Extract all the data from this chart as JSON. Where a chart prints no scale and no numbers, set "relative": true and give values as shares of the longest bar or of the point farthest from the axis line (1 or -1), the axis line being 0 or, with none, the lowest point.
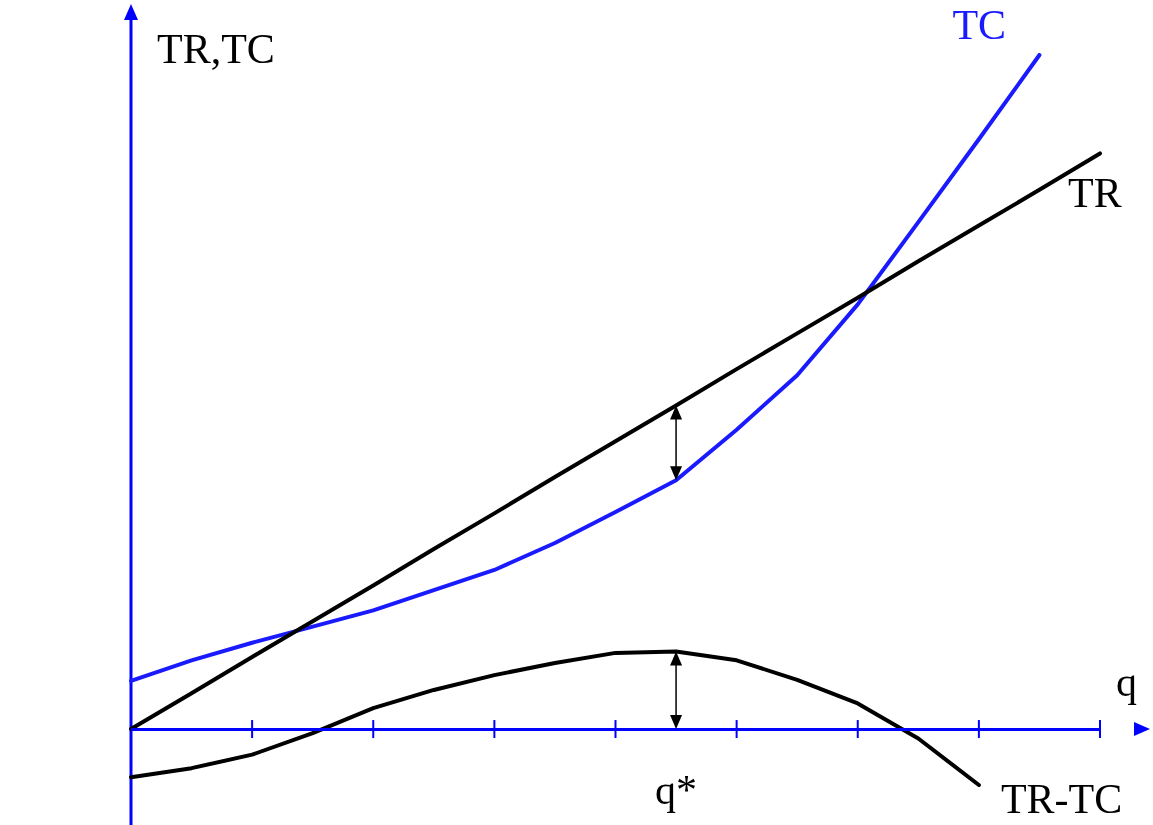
{
  "chart_data": {
    "type": "line",
    "relative": true,
    "xlabel": "q",
    "ylabel": "TR,TC",
    "categories": [
      null,
      null,
      null,
      null,
      null,
      null,
      null,
      null,
      null,
      null,
      null,
      null,
      null,
      null,
      null,
      null,
      null
    ],
    "series": [
      {
        "name": "TC",
        "color": "#1a1aff",
        "values": [
          0.0715,
          0.102,
          0.128,
          0.152,
          0.176,
          0.206,
          0.236,
          0.276,
          0.322,
          0.369,
          0.444,
          0.525,
          0.63,
          0.752,
          0.875,
          1,
          null
        ]
      },
      {
        "name": "TR",
        "color": "#000000",
        "values": [
          0,
          0.053,
          0.107,
          0.16,
          0.213,
          0.267,
          0.32,
          0.374,
          0.427,
          0.48,
          0.534,
          0.587,
          0.64,
          0.694,
          0.747,
          0.8,
          0.854
        ]
      },
      {
        "name": "TR-TC",
        "color": "#000000",
        "values": [
          -0.0715,
          -0.058,
          -0.038,
          -0.006,
          0.031,
          0.058,
          0.08,
          0.098,
          0.113,
          0.115,
          0.102,
          0.073,
          0.038,
          -0.014,
          -0.083,
          null,
          null
        ]
      }
    ],
    "annotations": [
      "q*"
    ],
    "ref_lines": [
      {
        "axis": "y",
        "value": 0,
        "color": "#0000ff"
      }
    ],
    "legend": false,
    "grid": false,
    "marker": "none",
    "line_style": "solid"
  }
}
